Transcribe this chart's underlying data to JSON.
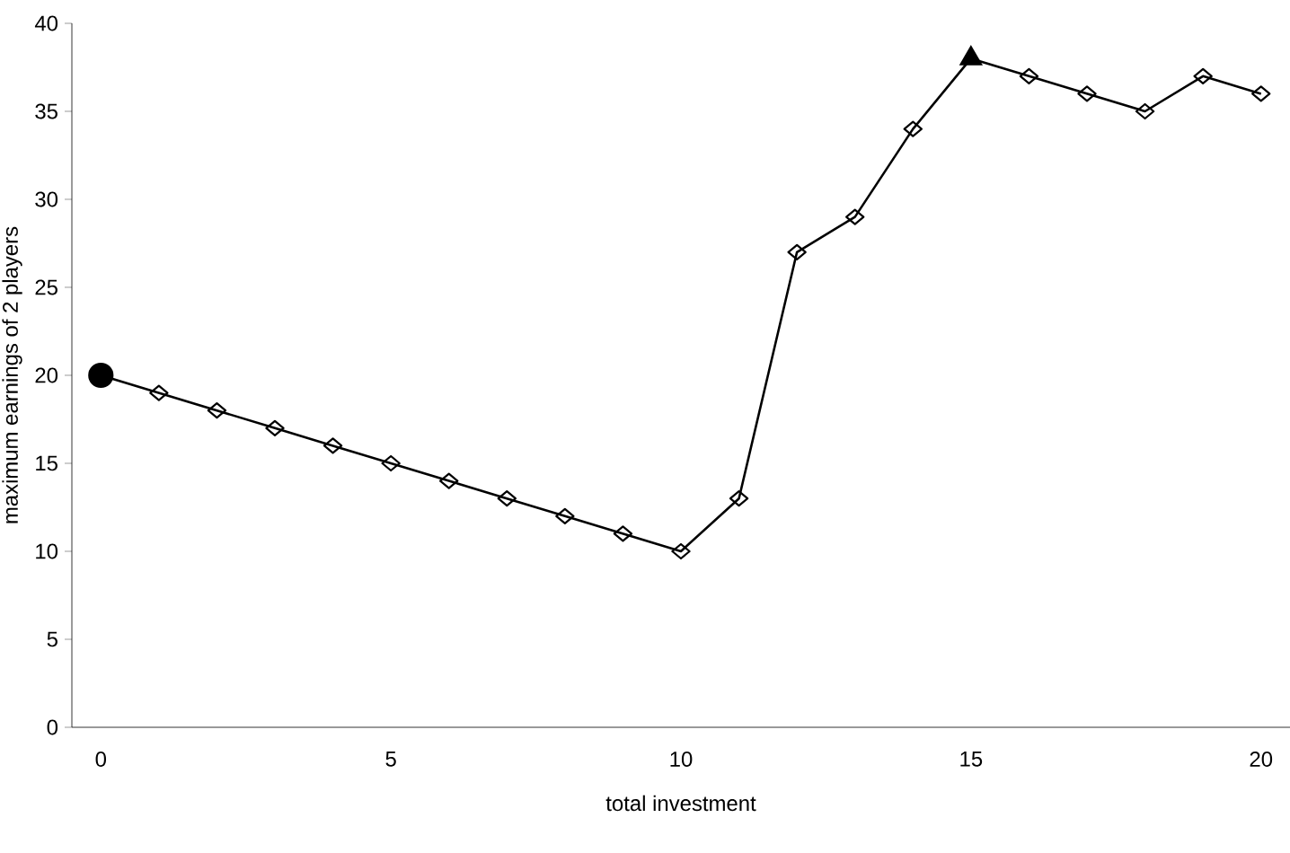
{
  "chart_data": {
    "type": "line",
    "xlabel": "total investment",
    "ylabel": "maximum earnings of 2 players",
    "categories": [
      "0",
      null,
      null,
      null,
      null,
      "5",
      null,
      null,
      null,
      null,
      "10",
      null,
      null,
      null,
      null,
      "15",
      null,
      null,
      null,
      null,
      "20"
    ],
    "ylim": [
      0,
      40
    ],
    "yticks": [
      0,
      5,
      10,
      15,
      20,
      25,
      30,
      35,
      40
    ],
    "grid": false,
    "series": [
      {
        "color": "#000000",
        "marker": "diamond",
        "values": [
          20,
          19,
          18,
          17,
          16,
          15,
          14,
          13,
          12,
          11,
          10,
          13,
          27,
          29,
          34,
          38,
          37,
          36,
          35,
          37,
          36
        ]
      },
      {
        "type": "scatter",
        "color": "#000000",
        "marker": "circle",
        "x": [
          "0"
        ],
        "values": [
          20
        ]
      },
      {
        "type": "scatter",
        "color": "#000000",
        "marker": "triangle",
        "x": [
          "15"
        ],
        "values": [
          38
        ]
      }
    ]
  }
}
